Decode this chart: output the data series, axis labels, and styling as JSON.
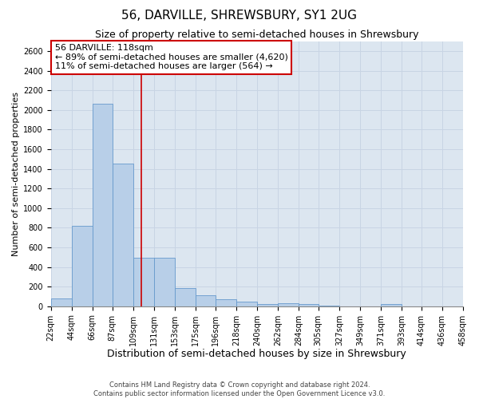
{
  "title": "56, DARVILLE, SHREWSBURY, SY1 2UG",
  "subtitle": "Size of property relative to semi-detached houses in Shrewsbury",
  "xlabel": "Distribution of semi-detached houses by size in Shrewsbury",
  "ylabel": "Number of semi-detached properties",
  "footer_line1": "Contains HM Land Registry data © Crown copyright and database right 2024.",
  "footer_line2": "Contains public sector information licensed under the Open Government Licence v3.0.",
  "annotation_title": "56 DARVILLE: 118sqm",
  "annotation_line1": "← 89% of semi-detached houses are smaller (4,620)",
  "annotation_line2": "11% of semi-detached houses are larger (564) →",
  "bin_edges": [
    22,
    44,
    66,
    87,
    109,
    131,
    153,
    175,
    196,
    218,
    240,
    262,
    284,
    305,
    327,
    349,
    371,
    393,
    414,
    436,
    458
  ],
  "bin_labels": [
    "22sqm",
    "44sqm",
    "66sqm",
    "87sqm",
    "109sqm",
    "131sqm",
    "153sqm",
    "175sqm",
    "196sqm",
    "218sqm",
    "240sqm",
    "262sqm",
    "284sqm",
    "305sqm",
    "327sqm",
    "349sqm",
    "371sqm",
    "393sqm",
    "414sqm",
    "436sqm",
    "458sqm"
  ],
  "bar_heights": [
    80,
    820,
    2060,
    1450,
    490,
    490,
    185,
    115,
    75,
    50,
    25,
    30,
    25,
    5,
    0,
    0,
    25,
    0,
    0,
    0
  ],
  "bar_color": "#b8cfe8",
  "bar_edge_color": "#6699cc",
  "vline_color": "#cc0000",
  "vline_x": 118,
  "ylim": [
    0,
    2700
  ],
  "yticks": [
    0,
    200,
    400,
    600,
    800,
    1000,
    1200,
    1400,
    1600,
    1800,
    2000,
    2200,
    2400,
    2600
  ],
  "grid_color": "#c8d4e4",
  "bg_color": "#dce6f0",
  "annotation_box_color": "#ffffff",
  "annotation_box_edge": "#cc0000",
  "title_fontsize": 11,
  "subtitle_fontsize": 9,
  "xlabel_fontsize": 9,
  "ylabel_fontsize": 8,
  "tick_fontsize": 7,
  "annotation_fontsize": 8,
  "footer_fontsize": 6
}
